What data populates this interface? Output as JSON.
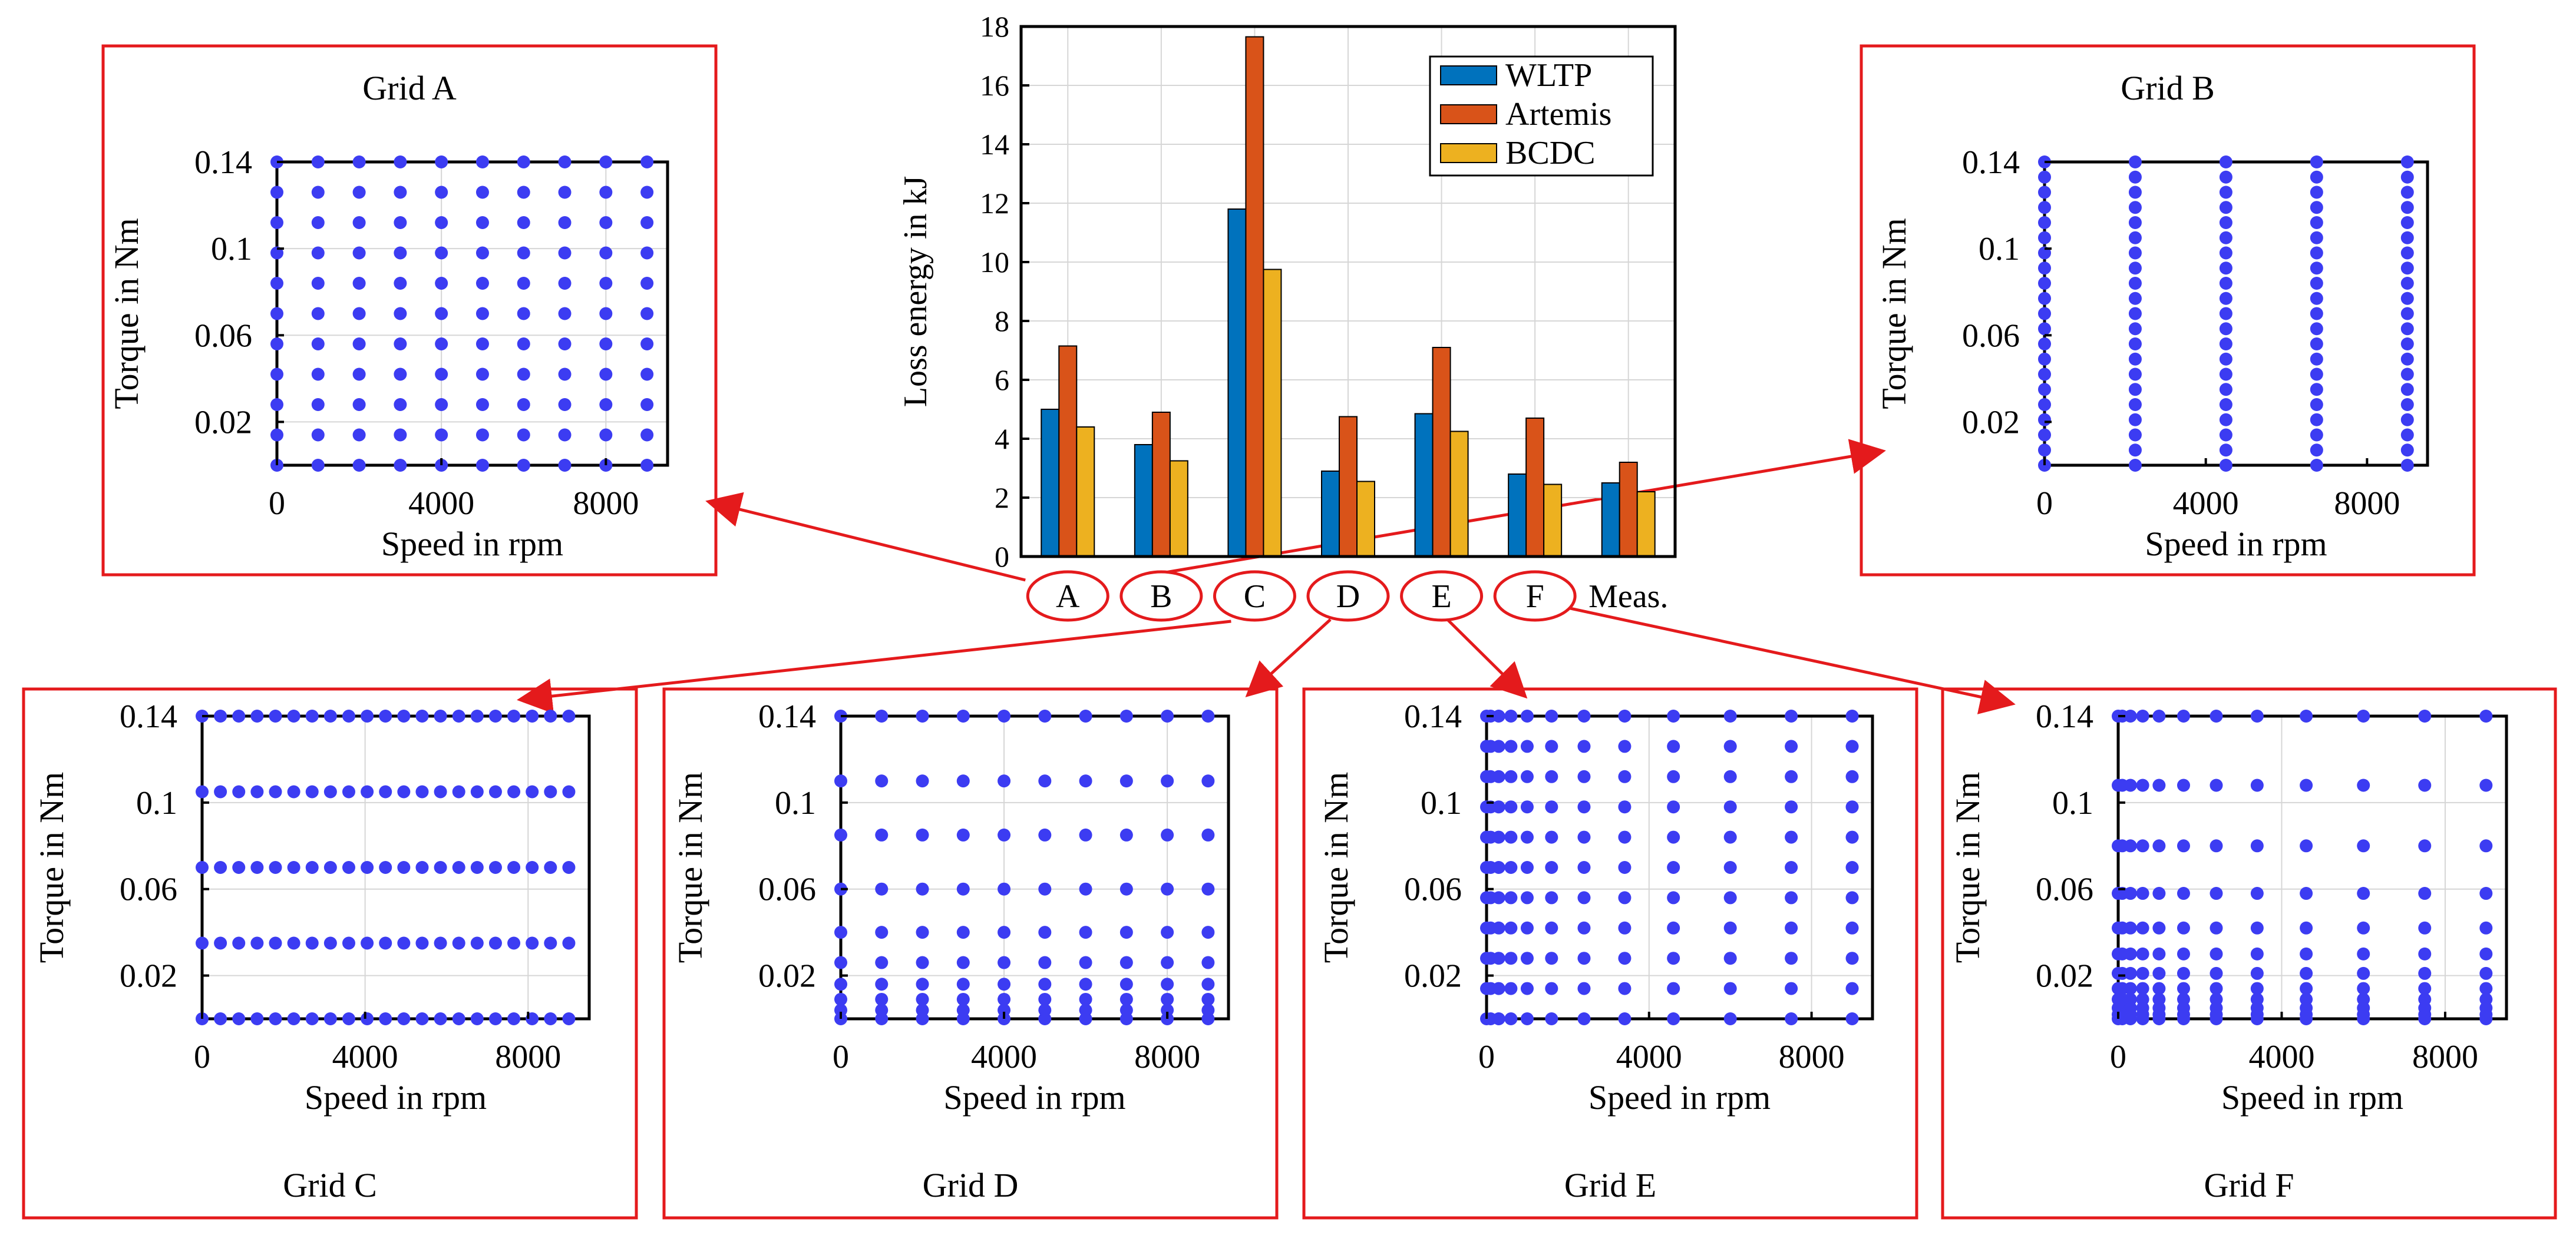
{
  "figure": {
    "accent_red": "#e41a1c",
    "marker_blue": "#3c3cf2",
    "grid_color": "#d6d6d6"
  },
  "chart_data": [
    {
      "id": "bar",
      "type": "bar",
      "categories": [
        "A",
        "B",
        "C",
        "D",
        "E",
        "F",
        "Meas."
      ],
      "ylabel": "Loss energy in kJ",
      "ylim": [
        0,
        18
      ],
      "yticks": [
        0,
        2,
        4,
        6,
        8,
        10,
        12,
        14,
        16,
        18
      ],
      "grid": true,
      "legend_position": "top-right",
      "series": [
        {
          "name": "WLTP",
          "color": "#0072bd",
          "values": [
            5.0,
            3.8,
            11.8,
            2.9,
            4.85,
            2.8,
            2.5
          ]
        },
        {
          "name": "Artemis",
          "color": "#d95319",
          "values": [
            7.15,
            4.9,
            17.65,
            4.75,
            7.1,
            4.7,
            3.2
          ]
        },
        {
          "name": "BCDC",
          "color": "#edb120",
          "values": [
            4.4,
            3.25,
            9.75,
            2.55,
            4.25,
            2.45,
            2.2
          ]
        }
      ]
    },
    {
      "id": "A",
      "type": "scatter",
      "title": "Grid A",
      "xlabel": "Speed in rpm",
      "ylabel": "Torque in Nm",
      "xlim": [
        0,
        9500
      ],
      "ylim": [
        0,
        0.14
      ],
      "xticks": [
        0,
        4000,
        8000
      ],
      "yticks": [
        0.02,
        0.06,
        0.1,
        0.14
      ],
      "ytick_labels": [
        "0.02",
        "0.06",
        "0.1",
        "0.14"
      ],
      "grid": true,
      "speeds": [
        0,
        1000,
        2000,
        3000,
        4000,
        5000,
        6000,
        7000,
        8000,
        9000
      ],
      "torques": [
        0,
        0.014,
        0.028,
        0.042,
        0.056,
        0.07,
        0.084,
        0.098,
        0.112,
        0.126,
        0.14
      ]
    },
    {
      "id": "B",
      "type": "scatter",
      "title": "Grid B",
      "xlabel": "Speed in rpm",
      "ylabel": "Torque in Nm",
      "xlim": [
        0,
        9500
      ],
      "ylim": [
        0,
        0.14
      ],
      "xticks": [
        0,
        4000,
        8000
      ],
      "yticks": [
        0.02,
        0.06,
        0.1,
        0.14
      ],
      "ytick_labels": [
        "0.02",
        "0.06",
        "0.1",
        "0.14"
      ],
      "grid": false,
      "speeds": [
        0,
        2250,
        4500,
        6750,
        9000
      ],
      "torques": [
        0,
        0.007,
        0.014,
        0.021,
        0.028,
        0.035,
        0.042,
        0.049,
        0.056,
        0.063,
        0.07,
        0.077,
        0.084,
        0.091,
        0.098,
        0.105,
        0.112,
        0.119,
        0.126,
        0.133,
        0.14
      ]
    },
    {
      "id": "C",
      "type": "scatter",
      "title": "Grid C",
      "xlabel": "Speed in rpm",
      "ylabel": "Torque in Nm",
      "xlim": [
        0,
        9500
      ],
      "ylim": [
        0,
        0.14
      ],
      "xticks": [
        0,
        4000,
        8000
      ],
      "yticks": [
        0.02,
        0.06,
        0.1,
        0.14
      ],
      "ytick_labels": [
        "0.02",
        "0.06",
        "0.1",
        "0.14"
      ],
      "grid": true,
      "speeds": [
        0,
        450,
        900,
        1350,
        1800,
        2250,
        2700,
        3150,
        3600,
        4050,
        4500,
        4950,
        5400,
        5850,
        6300,
        6750,
        7200,
        7650,
        8100,
        8550,
        9000
      ],
      "torques": [
        0,
        0.035,
        0.07,
        0.105,
        0.14
      ]
    },
    {
      "id": "D",
      "type": "scatter",
      "title": "Grid D",
      "xlabel": "Speed in rpm",
      "ylabel": "Torque in Nm",
      "xlim": [
        0,
        9500
      ],
      "ylim": [
        0,
        0.14
      ],
      "xticks": [
        0,
        4000,
        8000
      ],
      "yticks": [
        0.02,
        0.06,
        0.1,
        0.14
      ],
      "ytick_labels": [
        "0.02",
        "0.06",
        "0.1",
        "0.14"
      ],
      "grid": true,
      "speeds": [
        0,
        1000,
        2000,
        3000,
        4000,
        5000,
        6000,
        7000,
        8000,
        9000
      ],
      "torques": [
        0,
        0.004,
        0.009,
        0.016,
        0.026,
        0.04,
        0.06,
        0.085,
        0.11,
        0.14
      ]
    },
    {
      "id": "E",
      "type": "scatter",
      "title": "Grid E",
      "xlabel": "Speed in rpm",
      "ylabel": "Torque in Nm",
      "xlim": [
        0,
        9500
      ],
      "ylim": [
        0,
        0.14
      ],
      "xticks": [
        0,
        4000,
        8000
      ],
      "yticks": [
        0.02,
        0.06,
        0.1,
        0.14
      ],
      "ytick_labels": [
        "0.02",
        "0.06",
        "0.1",
        "0.14"
      ],
      "grid": true,
      "speeds": [
        0,
        100,
        300,
        600,
        1000,
        1600,
        2400,
        3400,
        4600,
        6000,
        7500,
        9000
      ],
      "torques": [
        0,
        0.014,
        0.028,
        0.042,
        0.056,
        0.07,
        0.084,
        0.098,
        0.112,
        0.126,
        0.14
      ]
    },
    {
      "id": "F",
      "type": "scatter",
      "title": "Grid F",
      "xlabel": "Speed in rpm",
      "ylabel": "Torque in Nm",
      "xlim": [
        0,
        9500
      ],
      "ylim": [
        0,
        0.14
      ],
      "xticks": [
        0,
        4000,
        8000
      ],
      "yticks": [
        0.02,
        0.06,
        0.1,
        0.14
      ],
      "ytick_labels": [
        "0.02",
        "0.06",
        "0.1",
        "0.14"
      ],
      "grid": true,
      "speeds": [
        0,
        100,
        300,
        600,
        1000,
        1600,
        2400,
        3400,
        4600,
        6000,
        7500,
        9000
      ],
      "torques": [
        0,
        0.002,
        0.005,
        0.009,
        0.014,
        0.021,
        0.03,
        0.042,
        0.058,
        0.08,
        0.108,
        0.14
      ]
    }
  ]
}
